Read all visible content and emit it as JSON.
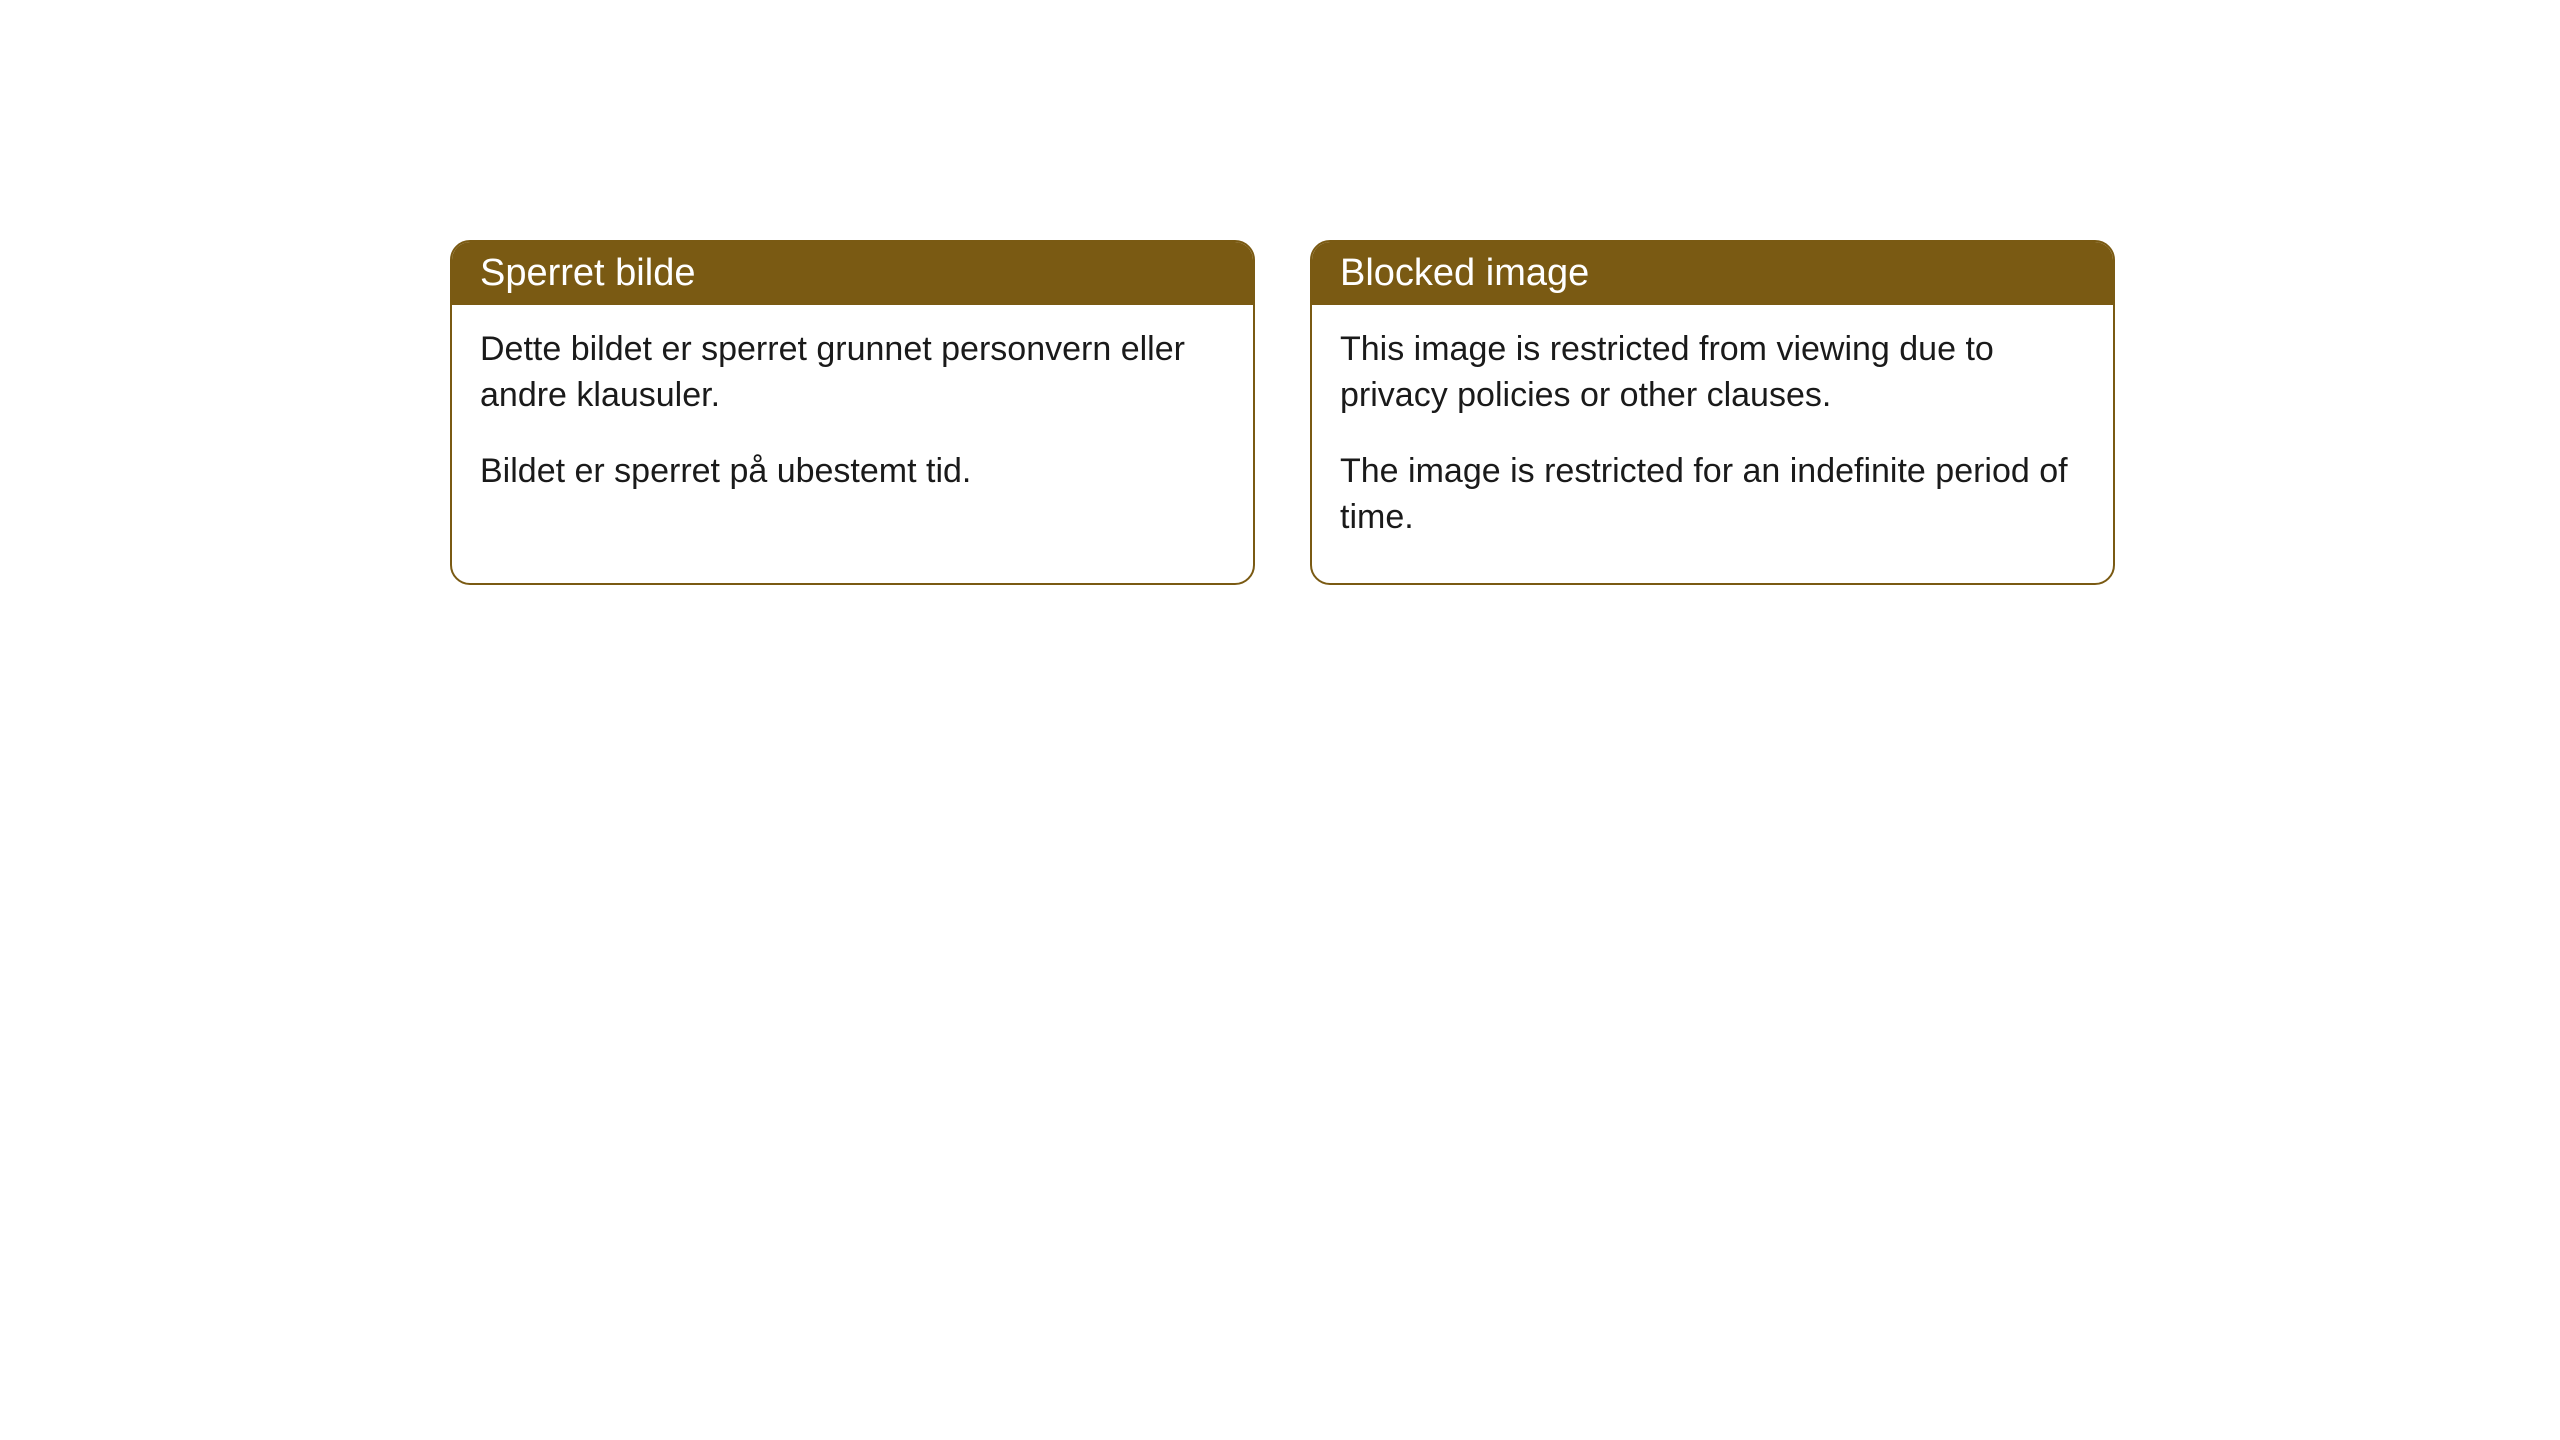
{
  "cards": [
    {
      "title": "Sperret bilde",
      "paragraph1": "Dette bildet er sperret grunnet personvern eller andre klausuler.",
      "paragraph2": "Bildet er sperret på ubestemt tid."
    },
    {
      "title": "Blocked image",
      "paragraph1": "This image is restricted from viewing due to privacy policies or other clauses.",
      "paragraph2": "The image is restricted for an indefinite period of time."
    }
  ],
  "styling": {
    "header_background_color": "#7a5a13",
    "header_text_color": "#ffffff",
    "border_color": "#7a5a13",
    "body_text_color": "#1a1a1a",
    "card_background_color": "#ffffff",
    "page_background_color": "#ffffff",
    "border_radius": 20,
    "header_fontsize": 38,
    "body_fontsize": 34
  }
}
